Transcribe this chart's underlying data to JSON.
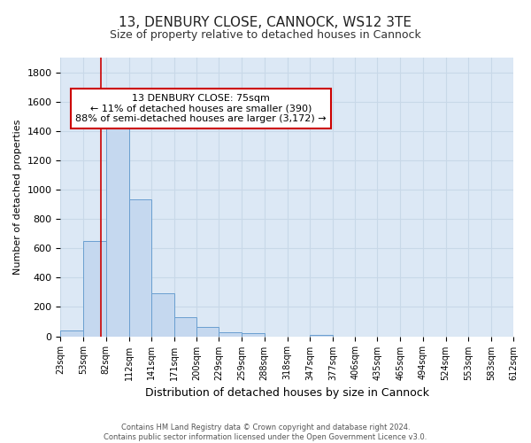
{
  "title": "13, DENBURY CLOSE, CANNOCK, WS12 3TE",
  "subtitle": "Size of property relative to detached houses in Cannock",
  "xlabel": "Distribution of detached houses by size in Cannock",
  "ylabel": "Number of detached properties",
  "footer_line1": "Contains HM Land Registry data © Crown copyright and database right 2024.",
  "footer_line2": "Contains public sector information licensed under the Open Government Licence v3.0.",
  "bin_edges": [
    23,
    53,
    82,
    112,
    141,
    171,
    200,
    229,
    259,
    288,
    318,
    347,
    377,
    406,
    435,
    465,
    494,
    524,
    553,
    583,
    612
  ],
  "bar_heights": [
    40,
    650,
    1470,
    935,
    295,
    130,
    65,
    25,
    20,
    0,
    0,
    10,
    0,
    0,
    0,
    0,
    0,
    0,
    0,
    0
  ],
  "bar_color": "#c5d8ef",
  "bar_edge_color": "#6a9fd0",
  "property_size": 75,
  "annotation_line1": "13 DENBURY CLOSE: 75sqm",
  "annotation_line2": "← 11% of detached houses are smaller (390)",
  "annotation_line3": "88% of semi-detached houses are larger (3,172) →",
  "annotation_box_color": "#ffffff",
  "annotation_border_color": "#cc0000",
  "vline_color": "#cc0000",
  "ylim": [
    0,
    1900
  ],
  "yticks": [
    0,
    200,
    400,
    600,
    800,
    1000,
    1200,
    1400,
    1600,
    1800
  ],
  "grid_color": "#c8d8e8",
  "background_color": "#dce8f5",
  "title_fontsize": 11,
  "subtitle_fontsize": 9
}
